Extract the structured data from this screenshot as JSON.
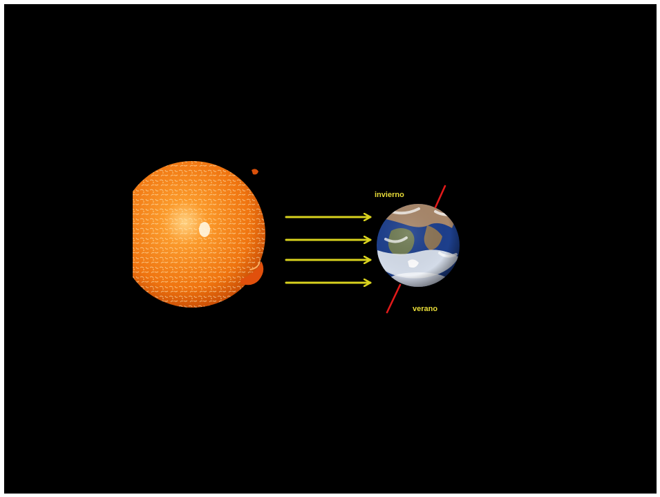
{
  "labels": {
    "winter": "invierno",
    "summer": "verano"
  },
  "objects": {
    "sun": "sun-icon",
    "earth": "earth-icon",
    "axis": "rotation-axis",
    "rays": "sun-rays"
  },
  "colors": {
    "background": "#000000",
    "sun": "#f07a14",
    "ray": "#d9d21e",
    "axis": "#e11a1a",
    "label": "#e8dc38",
    "ocean": "#1d3f8c"
  },
  "ray_count": 4
}
